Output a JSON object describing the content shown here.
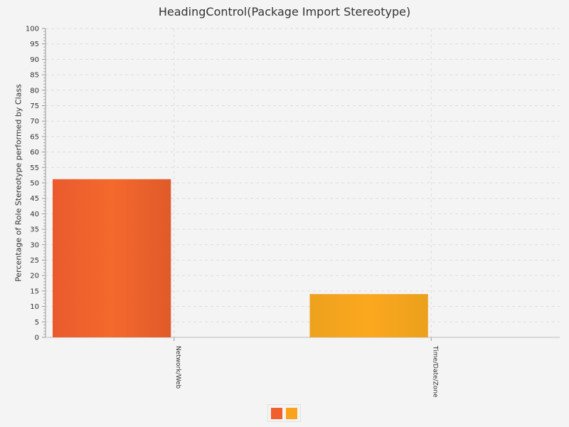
{
  "chart_data": {
    "type": "bar",
    "title": "HeadingControl(Package Import Stereotype)",
    "xlabel": "",
    "ylabel": "Percentage of Role Stereotype performed by Class",
    "categories": [
      "Network/Web",
      "Time/Date/Zone"
    ],
    "values": [
      51.2,
      14
    ],
    "ylim": [
      0,
      100
    ],
    "ytick_step": 5,
    "grid": true,
    "legend": "bottom-center",
    "colors": [
      "#f0602e",
      "#f9a31c"
    ]
  }
}
